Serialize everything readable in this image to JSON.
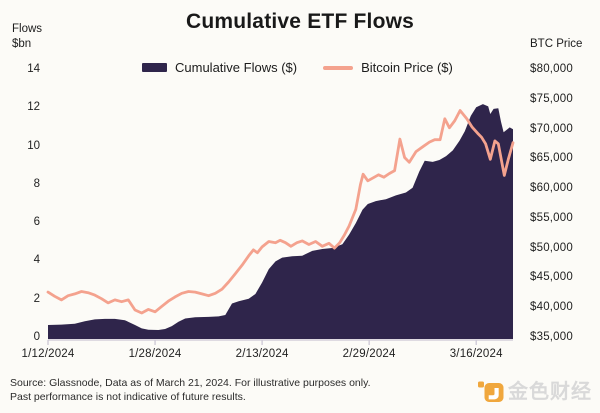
{
  "header": {
    "left_axis_title_line1": "Flows",
    "left_axis_title_line2": "$bn",
    "title": "Cumulative ETF Flows",
    "right_axis_title": "BTC Price"
  },
  "legend": {
    "flows_label": "Cumulative Flows ($)",
    "btc_label": "Bitcoin Price ($)"
  },
  "colors": {
    "flows_area": "#2f254b",
    "btc_line": "#f4a28e",
    "axis_line": "#ccc7d4",
    "background": "#fcfbf7",
    "logo_orange": "#f0a73d",
    "logo_text_gray": "#d9d9d9"
  },
  "footer": {
    "source_text": "Source: Glassnode, Data as of March 21, 2024. For illustrative purposes only. Past performance is not indicative of future results.",
    "logo_text": "金色财经"
  },
  "chart_data": {
    "type": "area+line",
    "title": "Cumulative ETF Flows",
    "x_unit": "days since 1/12/2024",
    "x_range": [
      0,
      69.5
    ],
    "x_tick_days": [
      0,
      16,
      32,
      48,
      64
    ],
    "x_tick_labels": [
      "1/12/2024",
      "1/28/2024",
      "2/13/2024",
      "2/29/2024",
      "3/16/2024"
    ],
    "left_axis": {
      "label": "Flows $bn",
      "ticks": [
        14,
        12,
        10,
        8,
        6,
        4,
        2,
        0
      ],
      "range": [
        0,
        14
      ]
    },
    "right_axis": {
      "label": "BTC Price",
      "tick_labels": [
        "$80,000",
        "$75,000",
        "$70,000",
        "$65,000",
        "$60,000",
        "$55,000",
        "$50,000",
        "$45,000",
        "$40,000",
        "$35,000"
      ],
      "range": [
        35000,
        80000
      ]
    },
    "grid": false,
    "legend_position": "top",
    "series": [
      {
        "name": "Cumulative Flows ($)",
        "type": "area",
        "axis": "left",
        "unit": "$bn",
        "points": [
          [
            0,
            0.68
          ],
          [
            2,
            0.7
          ],
          [
            4,
            0.74
          ],
          [
            5.5,
            0.88
          ],
          [
            7,
            0.97
          ],
          [
            8.5,
            1.0
          ],
          [
            10,
            1.0
          ],
          [
            11.5,
            0.93
          ],
          [
            13,
            0.68
          ],
          [
            14,
            0.5
          ],
          [
            15,
            0.43
          ],
          [
            16.5,
            0.42
          ],
          [
            17.5,
            0.47
          ],
          [
            18.5,
            0.62
          ],
          [
            19.5,
            0.85
          ],
          [
            20.5,
            1.02
          ],
          [
            22,
            1.08
          ],
          [
            24,
            1.1
          ],
          [
            25.5,
            1.13
          ],
          [
            26.5,
            1.2
          ],
          [
            27.5,
            1.8
          ],
          [
            28.5,
            1.92
          ],
          [
            30,
            2.05
          ],
          [
            31,
            2.3
          ],
          [
            32,
            2.9
          ],
          [
            33,
            3.6
          ],
          [
            34,
            4.0
          ],
          [
            35,
            4.2
          ],
          [
            36.5,
            4.27
          ],
          [
            38,
            4.3
          ],
          [
            39.5,
            4.55
          ],
          [
            41,
            4.65
          ],
          [
            42.5,
            4.7
          ],
          [
            44,
            4.9
          ],
          [
            45,
            5.4
          ],
          [
            46,
            6.0
          ],
          [
            47,
            6.7
          ],
          [
            47.8,
            7.0
          ],
          [
            49,
            7.15
          ],
          [
            50.5,
            7.25
          ],
          [
            52,
            7.45
          ],
          [
            53.5,
            7.6
          ],
          [
            54.5,
            7.85
          ],
          [
            55.5,
            8.7
          ],
          [
            56.3,
            9.26
          ],
          [
            57.5,
            9.2
          ],
          [
            58.5,
            9.3
          ],
          [
            59.5,
            9.5
          ],
          [
            60.5,
            9.8
          ],
          [
            61.5,
            10.3
          ],
          [
            62.3,
            10.8
          ],
          [
            63.2,
            11.6
          ],
          [
            64,
            12.05
          ],
          [
            65,
            12.22
          ],
          [
            65.8,
            12.1
          ],
          [
            66.1,
            11.7
          ],
          [
            66.6,
            11.97
          ],
          [
            67.3,
            12.0
          ],
          [
            67.7,
            11.3
          ],
          [
            68.1,
            10.75
          ],
          [
            69,
            11.0
          ],
          [
            69.5,
            10.9
          ]
        ]
      },
      {
        "name": "Bitcoin Price ($)",
        "type": "line",
        "axis": "right",
        "unit": "$",
        "points": [
          [
            0,
            42700
          ],
          [
            1,
            42000
          ],
          [
            2,
            41400
          ],
          [
            3,
            42100
          ],
          [
            4,
            42400
          ],
          [
            5,
            42800
          ],
          [
            6,
            42600
          ],
          [
            7,
            42200
          ],
          [
            8,
            41600
          ],
          [
            9,
            40900
          ],
          [
            10,
            41400
          ],
          [
            11,
            41100
          ],
          [
            12,
            41400
          ],
          [
            13,
            39700
          ],
          [
            14,
            39200
          ],
          [
            15,
            39800
          ],
          [
            16,
            39400
          ],
          [
            17,
            40300
          ],
          [
            18,
            41200
          ],
          [
            19,
            41900
          ],
          [
            20,
            42500
          ],
          [
            21,
            42800
          ],
          [
            22,
            42700
          ],
          [
            23,
            42400
          ],
          [
            24,
            42100
          ],
          [
            25,
            42500
          ],
          [
            26,
            43200
          ],
          [
            27,
            44400
          ],
          [
            28,
            45800
          ],
          [
            29,
            47200
          ],
          [
            30,
            48800
          ],
          [
            30.7,
            49800
          ],
          [
            31.3,
            49300
          ],
          [
            32,
            50300
          ],
          [
            33,
            51200
          ],
          [
            34,
            51000
          ],
          [
            34.7,
            51400
          ],
          [
            35.5,
            51000
          ],
          [
            36.3,
            50400
          ],
          [
            37.2,
            51000
          ],
          [
            38,
            51300
          ],
          [
            39,
            50700
          ],
          [
            40,
            51200
          ],
          [
            41,
            50400
          ],
          [
            42,
            50900
          ],
          [
            42.8,
            50100
          ],
          [
            43.6,
            51000
          ],
          [
            44.3,
            52300
          ],
          [
            45,
            53800
          ],
          [
            46,
            56600
          ],
          [
            46.7,
            60800
          ],
          [
            47.1,
            62500
          ],
          [
            47.8,
            61400
          ],
          [
            48.6,
            61900
          ],
          [
            49.4,
            62400
          ],
          [
            50.2,
            62000
          ],
          [
            51,
            62600
          ],
          [
            51.8,
            63100
          ],
          [
            52.6,
            68400
          ],
          [
            53.3,
            65300
          ],
          [
            54,
            64500
          ],
          [
            55,
            66300
          ],
          [
            56,
            67100
          ],
          [
            57,
            67900
          ],
          [
            57.8,
            68300
          ],
          [
            58.6,
            68300
          ],
          [
            59.3,
            71800
          ],
          [
            60,
            70300
          ],
          [
            60.8,
            71500
          ],
          [
            61.6,
            73200
          ],
          [
            62.6,
            71800
          ],
          [
            63.4,
            70400
          ],
          [
            64.2,
            69400
          ],
          [
            64.8,
            68700
          ],
          [
            65.4,
            67600
          ],
          [
            66.1,
            65000
          ],
          [
            66.8,
            68100
          ],
          [
            67.3,
            67600
          ],
          [
            68.2,
            62300
          ],
          [
            68.8,
            65000
          ],
          [
            69.5,
            67800
          ]
        ]
      }
    ]
  }
}
